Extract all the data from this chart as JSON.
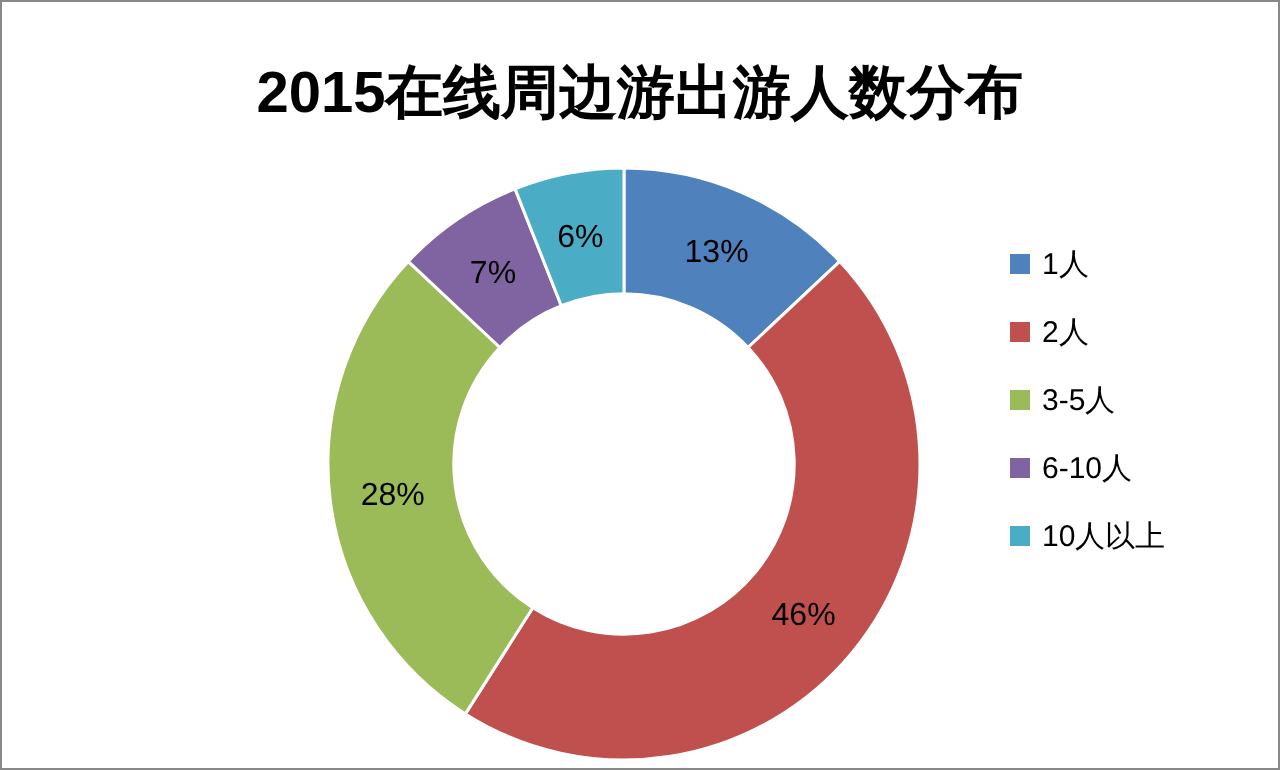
{
  "chart_data": {
    "type": "donut",
    "title": "2015在线周边游出游人数分布",
    "categories": [
      "1人",
      "2人",
      "3-5人",
      "6-10人",
      "10人以上"
    ],
    "values": [
      13,
      46,
      28,
      7,
      6
    ],
    "colors": [
      "#4f81bd",
      "#c0504d",
      "#9bbb59",
      "#8064a2",
      "#4bacc6"
    ],
    "value_labels": [
      "13%",
      "46%",
      "28%",
      "7%",
      "6%"
    ],
    "legend": "right"
  }
}
